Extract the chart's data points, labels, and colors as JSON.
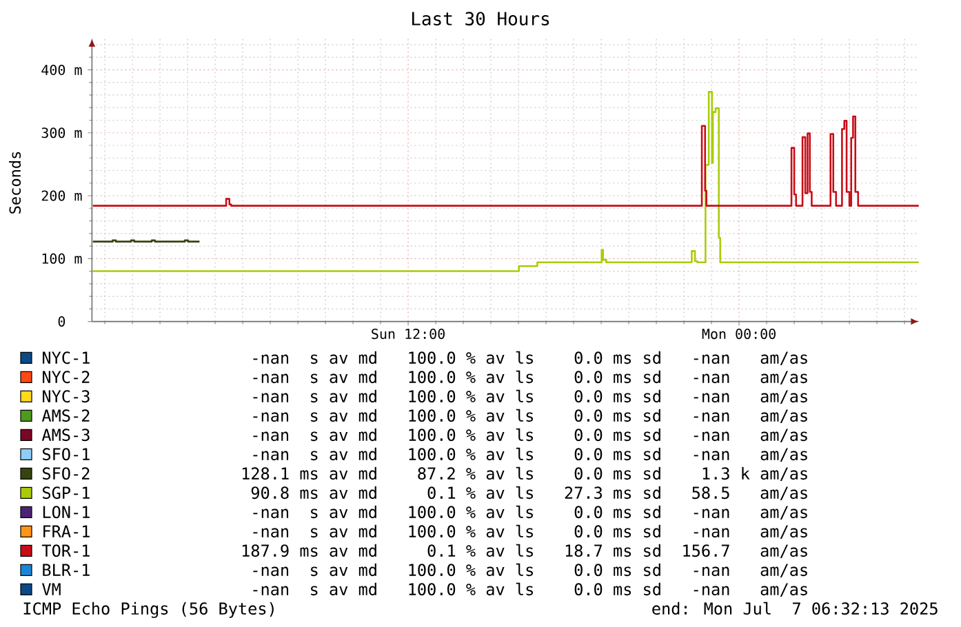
{
  "chart_data": {
    "type": "step",
    "title": "Last 30 Hours",
    "ylabel": "Seconds",
    "xlim": [
      "2025-07-06T00:32",
      "2025-07-07T06:32"
    ],
    "ylim": [
      0,
      450
    ],
    "xticks": [
      {
        "value": "2025-07-06T01:00",
        "label": null
      },
      {
        "value": "2025-07-06T02:00",
        "label": null
      },
      {
        "value": "2025-07-06T03:00",
        "label": null
      },
      {
        "value": "2025-07-06T04:00",
        "label": null
      },
      {
        "value": "2025-07-06T05:00",
        "label": null
      },
      {
        "value": "2025-07-06T06:00",
        "label": null
      },
      {
        "value": "2025-07-06T07:00",
        "label": null
      },
      {
        "value": "2025-07-06T08:00",
        "label": null
      },
      {
        "value": "2025-07-06T09:00",
        "label": null
      },
      {
        "value": "2025-07-06T10:00",
        "label": null
      },
      {
        "value": "2025-07-06T11:00",
        "label": null
      },
      {
        "value": "2025-07-06T12:00",
        "label": "Sun 12:00"
      },
      {
        "value": "2025-07-06T13:00",
        "label": null
      },
      {
        "value": "2025-07-06T14:00",
        "label": null
      },
      {
        "value": "2025-07-06T15:00",
        "label": null
      },
      {
        "value": "2025-07-06T16:00",
        "label": null
      },
      {
        "value": "2025-07-06T17:00",
        "label": null
      },
      {
        "value": "2025-07-06T18:00",
        "label": null
      },
      {
        "value": "2025-07-06T19:00",
        "label": null
      },
      {
        "value": "2025-07-06T20:00",
        "label": null
      },
      {
        "value": "2025-07-06T21:00",
        "label": null
      },
      {
        "value": "2025-07-06T22:00",
        "label": null
      },
      {
        "value": "2025-07-06T23:00",
        "label": null
      },
      {
        "value": "2025-07-07T00:00",
        "label": "Mon 00:00"
      },
      {
        "value": "2025-07-07T01:00",
        "label": null
      },
      {
        "value": "2025-07-07T02:00",
        "label": null
      },
      {
        "value": "2025-07-07T03:00",
        "label": null
      },
      {
        "value": "2025-07-07T04:00",
        "label": null
      },
      {
        "value": "2025-07-07T05:00",
        "label": null
      },
      {
        "value": "2025-07-07T06:00",
        "label": null
      }
    ],
    "yticks": [
      0,
      {
        "value": 20,
        "label": null
      },
      {
        "value": 40,
        "label": null
      },
      {
        "value": 60,
        "label": null
      },
      {
        "value": 80,
        "label": null
      },
      {
        "value": 100,
        "label": "100 m"
      },
      {
        "value": 120,
        "label": null
      },
      {
        "value": 140,
        "label": null
      },
      {
        "value": 160,
        "label": null
      },
      {
        "value": 180,
        "label": null
      },
      {
        "value": 200,
        "label": "200 m"
      },
      {
        "value": 220,
        "label": null
      },
      {
        "value": 240,
        "label": null
      },
      {
        "value": 260,
        "label": null
      },
      {
        "value": 280,
        "label": null
      },
      {
        "value": 300,
        "label": "300 m"
      },
      {
        "value": 320,
        "label": null
      },
      {
        "value": 340,
        "label": null
      },
      {
        "value": 360,
        "label": null
      },
      {
        "value": 380,
        "label": null
      },
      {
        "value": 400,
        "label": "400 m"
      },
      {
        "value": 420,
        "label": null
      },
      {
        "value": 440,
        "label": null
      }
    ],
    "grid": true,
    "legend": "bottom",
    "series": [
      {
        "name": "NYC-1",
        "color": "#0b4a86"
      },
      {
        "name": "NYC-2",
        "color": "#ff4813"
      },
      {
        "name": "NYC-3",
        "color": "#ffd919"
      },
      {
        "name": "AMS-2",
        "color": "#4f9a1d"
      },
      {
        "name": "AMS-3",
        "color": "#7a0725"
      },
      {
        "name": "SFO-1",
        "color": "#8fcdfb"
      },
      {
        "name": "SFO-2",
        "color": "#364410",
        "x": [
          "2025-07-06T00:34",
          "2025-07-06T01:17",
          "2025-07-06T01:24",
          "2025-07-06T01:57",
          "2025-07-06T02:04",
          "2025-07-06T02:42",
          "2025-07-06T02:49",
          "2025-07-06T03:54",
          "2025-07-06T04:01",
          "2025-07-06T04:26"
        ],
        "values": [
          127,
          129,
          127,
          129,
          127,
          129,
          127,
          129,
          127,
          127
        ]
      },
      {
        "name": "SGP-1",
        "color": "#a9cc07",
        "x": [
          "2025-07-06T00:34",
          "2025-07-06T16:01",
          "2025-07-06T16:41",
          "2025-07-06T19:01",
          "2025-07-06T19:04",
          "2025-07-06T19:11",
          "2025-07-06T22:17",
          "2025-07-06T22:24",
          "2025-07-06T22:29",
          "2025-07-06T22:47",
          "2025-07-06T22:54",
          "2025-07-06T23:01",
          "2025-07-06T23:03",
          "2025-07-06T23:09",
          "2025-07-06T23:16",
          "2025-07-06T23:19",
          "2025-07-07T06:31"
        ],
        "values": [
          80,
          88,
          94,
          114,
          98,
          94,
          112,
          96,
          94,
          249,
          365,
          252,
          333,
          339,
          133,
          94,
          94
        ]
      },
      {
        "name": "LON-1",
        "color": "#4b2475"
      },
      {
        "name": "FRA-1",
        "color": "#ff9517"
      },
      {
        "name": "TOR-1",
        "color": "#c80d17",
        "x": [
          "2025-07-06T00:34",
          "2025-07-06T05:24",
          "2025-07-06T05:31",
          "2025-07-06T05:35",
          "2025-07-06T22:39",
          "2025-07-06T22:46",
          "2025-07-06T22:49",
          "2025-07-07T01:54",
          "2025-07-07T02:00",
          "2025-07-07T02:04",
          "2025-07-07T02:18",
          "2025-07-07T02:24",
          "2025-07-07T02:29",
          "2025-07-07T02:34",
          "2025-07-07T02:38",
          "2025-07-07T03:19",
          "2025-07-07T03:25",
          "2025-07-07T03:31",
          "2025-07-07T03:44",
          "2025-07-07T03:49",
          "2025-07-07T03:54",
          "2025-07-07T04:00",
          "2025-07-07T04:04",
          "2025-07-07T04:08",
          "2025-07-07T04:13",
          "2025-07-07T04:19",
          "2025-07-07T06:31"
        ],
        "values": [
          184,
          195,
          186,
          184,
          311,
          208,
          184,
          276,
          202,
          184,
          293,
          204,
          299,
          206,
          184,
          298,
          206,
          184,
          306,
          319,
          206,
          184,
          292,
          326,
          206,
          184,
          184
        ]
      },
      {
        "name": "BLR-1",
        "color": "#1a85d6"
      },
      {
        "name": "VM",
        "color": "#0b4a86"
      }
    ],
    "annotations": [
      "-nan  s av md   100.0 % av ls    0.0 ms sd   -nan   am/as",
      "-nan  s av md   100.0 % av ls    0.0 ms sd   -nan   am/as",
      "-nan  s av md   100.0 % av ls    0.0 ms sd   -nan   am/as",
      "-nan  s av md   100.0 % av ls    0.0 ms sd   -nan   am/as",
      "-nan  s av md   100.0 % av ls    0.0 ms sd   -nan   am/as",
      "-nan  s av md   100.0 % av ls    0.0 ms sd   -nan   am/as",
      "128.1 ms av md    87.2 % av ls    0.0 ms sd    1.3 k am/as",
      "90.8 ms av md     0.1 % av ls   27.3 ms sd   58.5   am/as",
      "-nan  s av md   100.0 % av ls    0.0 ms sd   -nan   am/as",
      "-nan  s av md   100.0 % av ls    0.0 ms sd   -nan   am/as",
      "187.9 ms av md     0.1 % av ls   18.7 ms sd  156.7   am/as",
      "-nan  s av md   100.0 % av ls    0.0 ms sd   -nan   am/as",
      "-nan  s av md   100.0 % av ls    0.0 ms sd   -nan   am/as",
      "ICMP Echo Pings (56 Bytes)",
      "end: Mon Jul  7 06:32:13 2025"
    ]
  }
}
